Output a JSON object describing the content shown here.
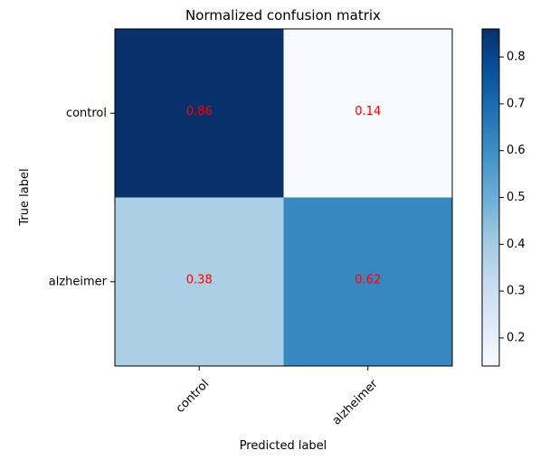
{
  "chart_data": {
    "type": "heatmap",
    "title": "Normalized confusion matrix",
    "xlabel": "Predicted label",
    "ylabel": "True label",
    "x_categories": [
      "control",
      "alzheimer"
    ],
    "y_categories": [
      "control",
      "alzheimer"
    ],
    "values": [
      [
        0.86,
        0.14
      ],
      [
        0.38,
        0.62
      ]
    ],
    "cell_labels": [
      [
        "0.86",
        "0.14"
      ],
      [
        "0.38",
        "0.62"
      ]
    ],
    "colormap": "Blues",
    "colorbar": {
      "range": [
        0.14,
        0.86
      ],
      "ticks": [
        0.2,
        0.3,
        0.4,
        0.5,
        0.6,
        0.7,
        0.8
      ],
      "tick_labels": [
        "0.2",
        "0.3",
        "0.4",
        "0.5",
        "0.6",
        "0.7",
        "0.8"
      ]
    },
    "annotation_color": "#ff0000",
    "grid": false
  }
}
